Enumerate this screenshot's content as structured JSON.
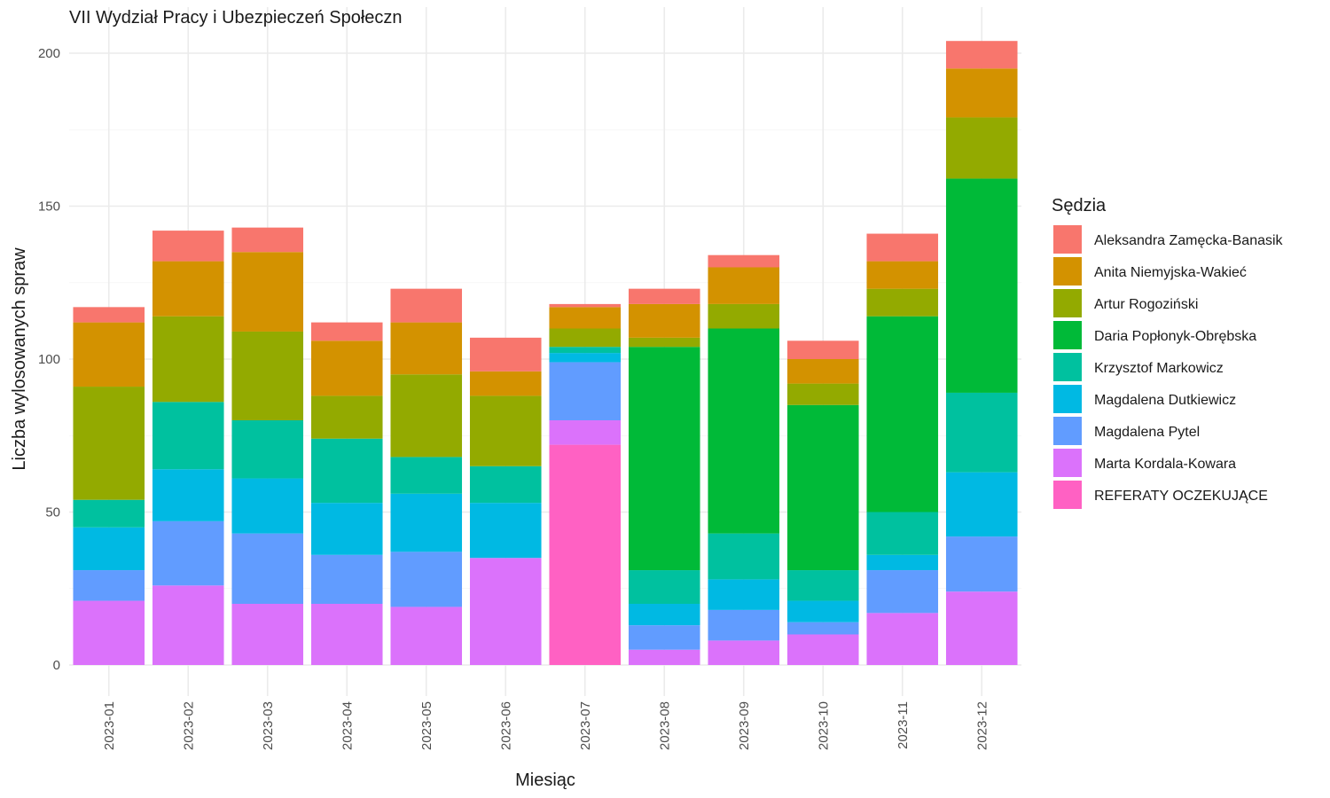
{
  "chart_data": {
    "type": "bar",
    "stacked": true,
    "title": "VII Wydział Pracy i Ubezpieczeń Społeczn",
    "xlabel": "Miesiąc",
    "ylabel": "Liczba wylosowanych spraw",
    "ylim": [
      0,
      210
    ],
    "yticks": [
      0,
      50,
      100,
      150,
      200
    ],
    "grid": true,
    "legend_title": "Sędzia",
    "legend_position": "right",
    "categories": [
      "2023-01",
      "2023-02",
      "2023-03",
      "2023-04",
      "2023-05",
      "2023-06",
      "2023-07",
      "2023-08",
      "2023-09",
      "2023-10",
      "2023-11",
      "2023-12"
    ],
    "series": [
      {
        "name": "Aleksandra Zamęcka-Banasik",
        "color": "#F8766D",
        "values": [
          5,
          10,
          8,
          6,
          11,
          11,
          1,
          5,
          4,
          6,
          9,
          9
        ]
      },
      {
        "name": "Anita Niemyjska-Wakieć",
        "color": "#D39200",
        "values": [
          21,
          18,
          26,
          18,
          17,
          8,
          7,
          11,
          12,
          8,
          9,
          16
        ]
      },
      {
        "name": "Artur Rogoziński",
        "color": "#93AA00",
        "values": [
          37,
          28,
          29,
          14,
          27,
          23,
          6,
          3,
          8,
          7,
          9,
          20
        ]
      },
      {
        "name": "Daria Popłonyk-Obrębska",
        "color": "#00BA38",
        "values": [
          0,
          0,
          0,
          0,
          0,
          0,
          0,
          73,
          67,
          54,
          64,
          70
        ]
      },
      {
        "name": "Krzysztof Markowicz",
        "color": "#00C19F",
        "values": [
          9,
          22,
          19,
          21,
          12,
          12,
          2,
          11,
          15,
          10,
          14,
          26
        ]
      },
      {
        "name": "Magdalena Dutkiewicz",
        "color": "#00B9E3",
        "values": [
          14,
          17,
          18,
          17,
          19,
          18,
          3,
          7,
          10,
          7,
          5,
          21
        ]
      },
      {
        "name": "Magdalena Pytel",
        "color": "#619CFF",
        "values": [
          10,
          21,
          23,
          16,
          18,
          0,
          19,
          8,
          10,
          4,
          14,
          18
        ]
      },
      {
        "name": "Marta Kordala-Kowara",
        "color": "#DB72FB",
        "values": [
          21,
          26,
          20,
          20,
          19,
          35,
          8,
          5,
          8,
          10,
          17,
          24
        ]
      },
      {
        "name": "REFERATY OCZEKUJĄCE",
        "color": "#FF61C3",
        "values": [
          0,
          0,
          0,
          0,
          0,
          0,
          72,
          0,
          0,
          0,
          0,
          0
        ]
      }
    ]
  }
}
